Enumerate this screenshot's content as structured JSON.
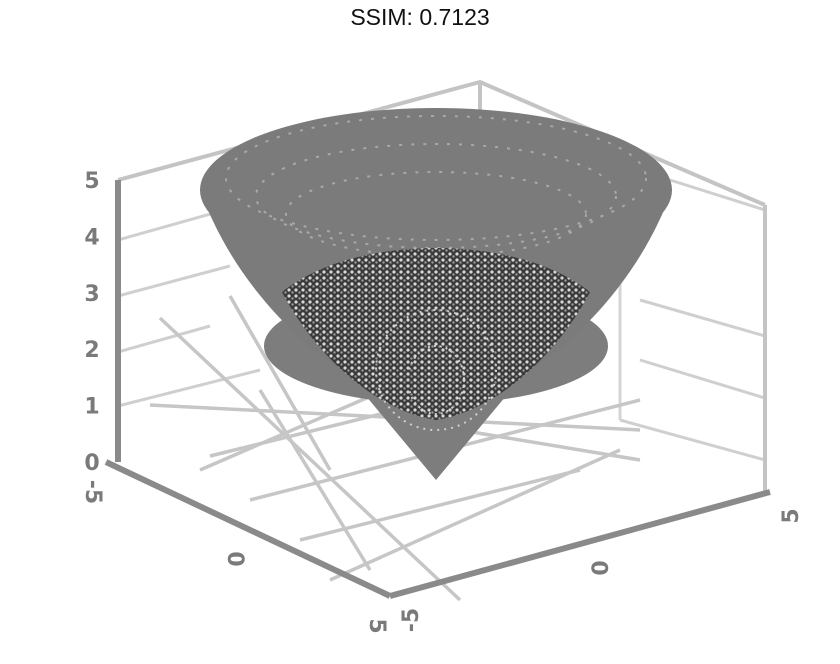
{
  "title": "SSIM: 0.7123",
  "chart_data": {
    "type": "surface3d",
    "title": "SSIM: 0.7123",
    "surface": "cone",
    "z_ticks": [
      "0",
      "1",
      "2",
      "3",
      "4",
      "5"
    ],
    "x_ticks": [
      "-5",
      "0",
      "5"
    ],
    "y_ticks": [
      "-5",
      "0",
      "5"
    ],
    "zlim": [
      0,
      5
    ],
    "xlim": [
      -5,
      5
    ],
    "ylim": [
      -5,
      5
    ],
    "grid": true,
    "colors": {
      "surface": "#7d7d7d",
      "axis": "#8a8a8a",
      "grid": "#c4c4c4",
      "text": "#111111"
    }
  }
}
